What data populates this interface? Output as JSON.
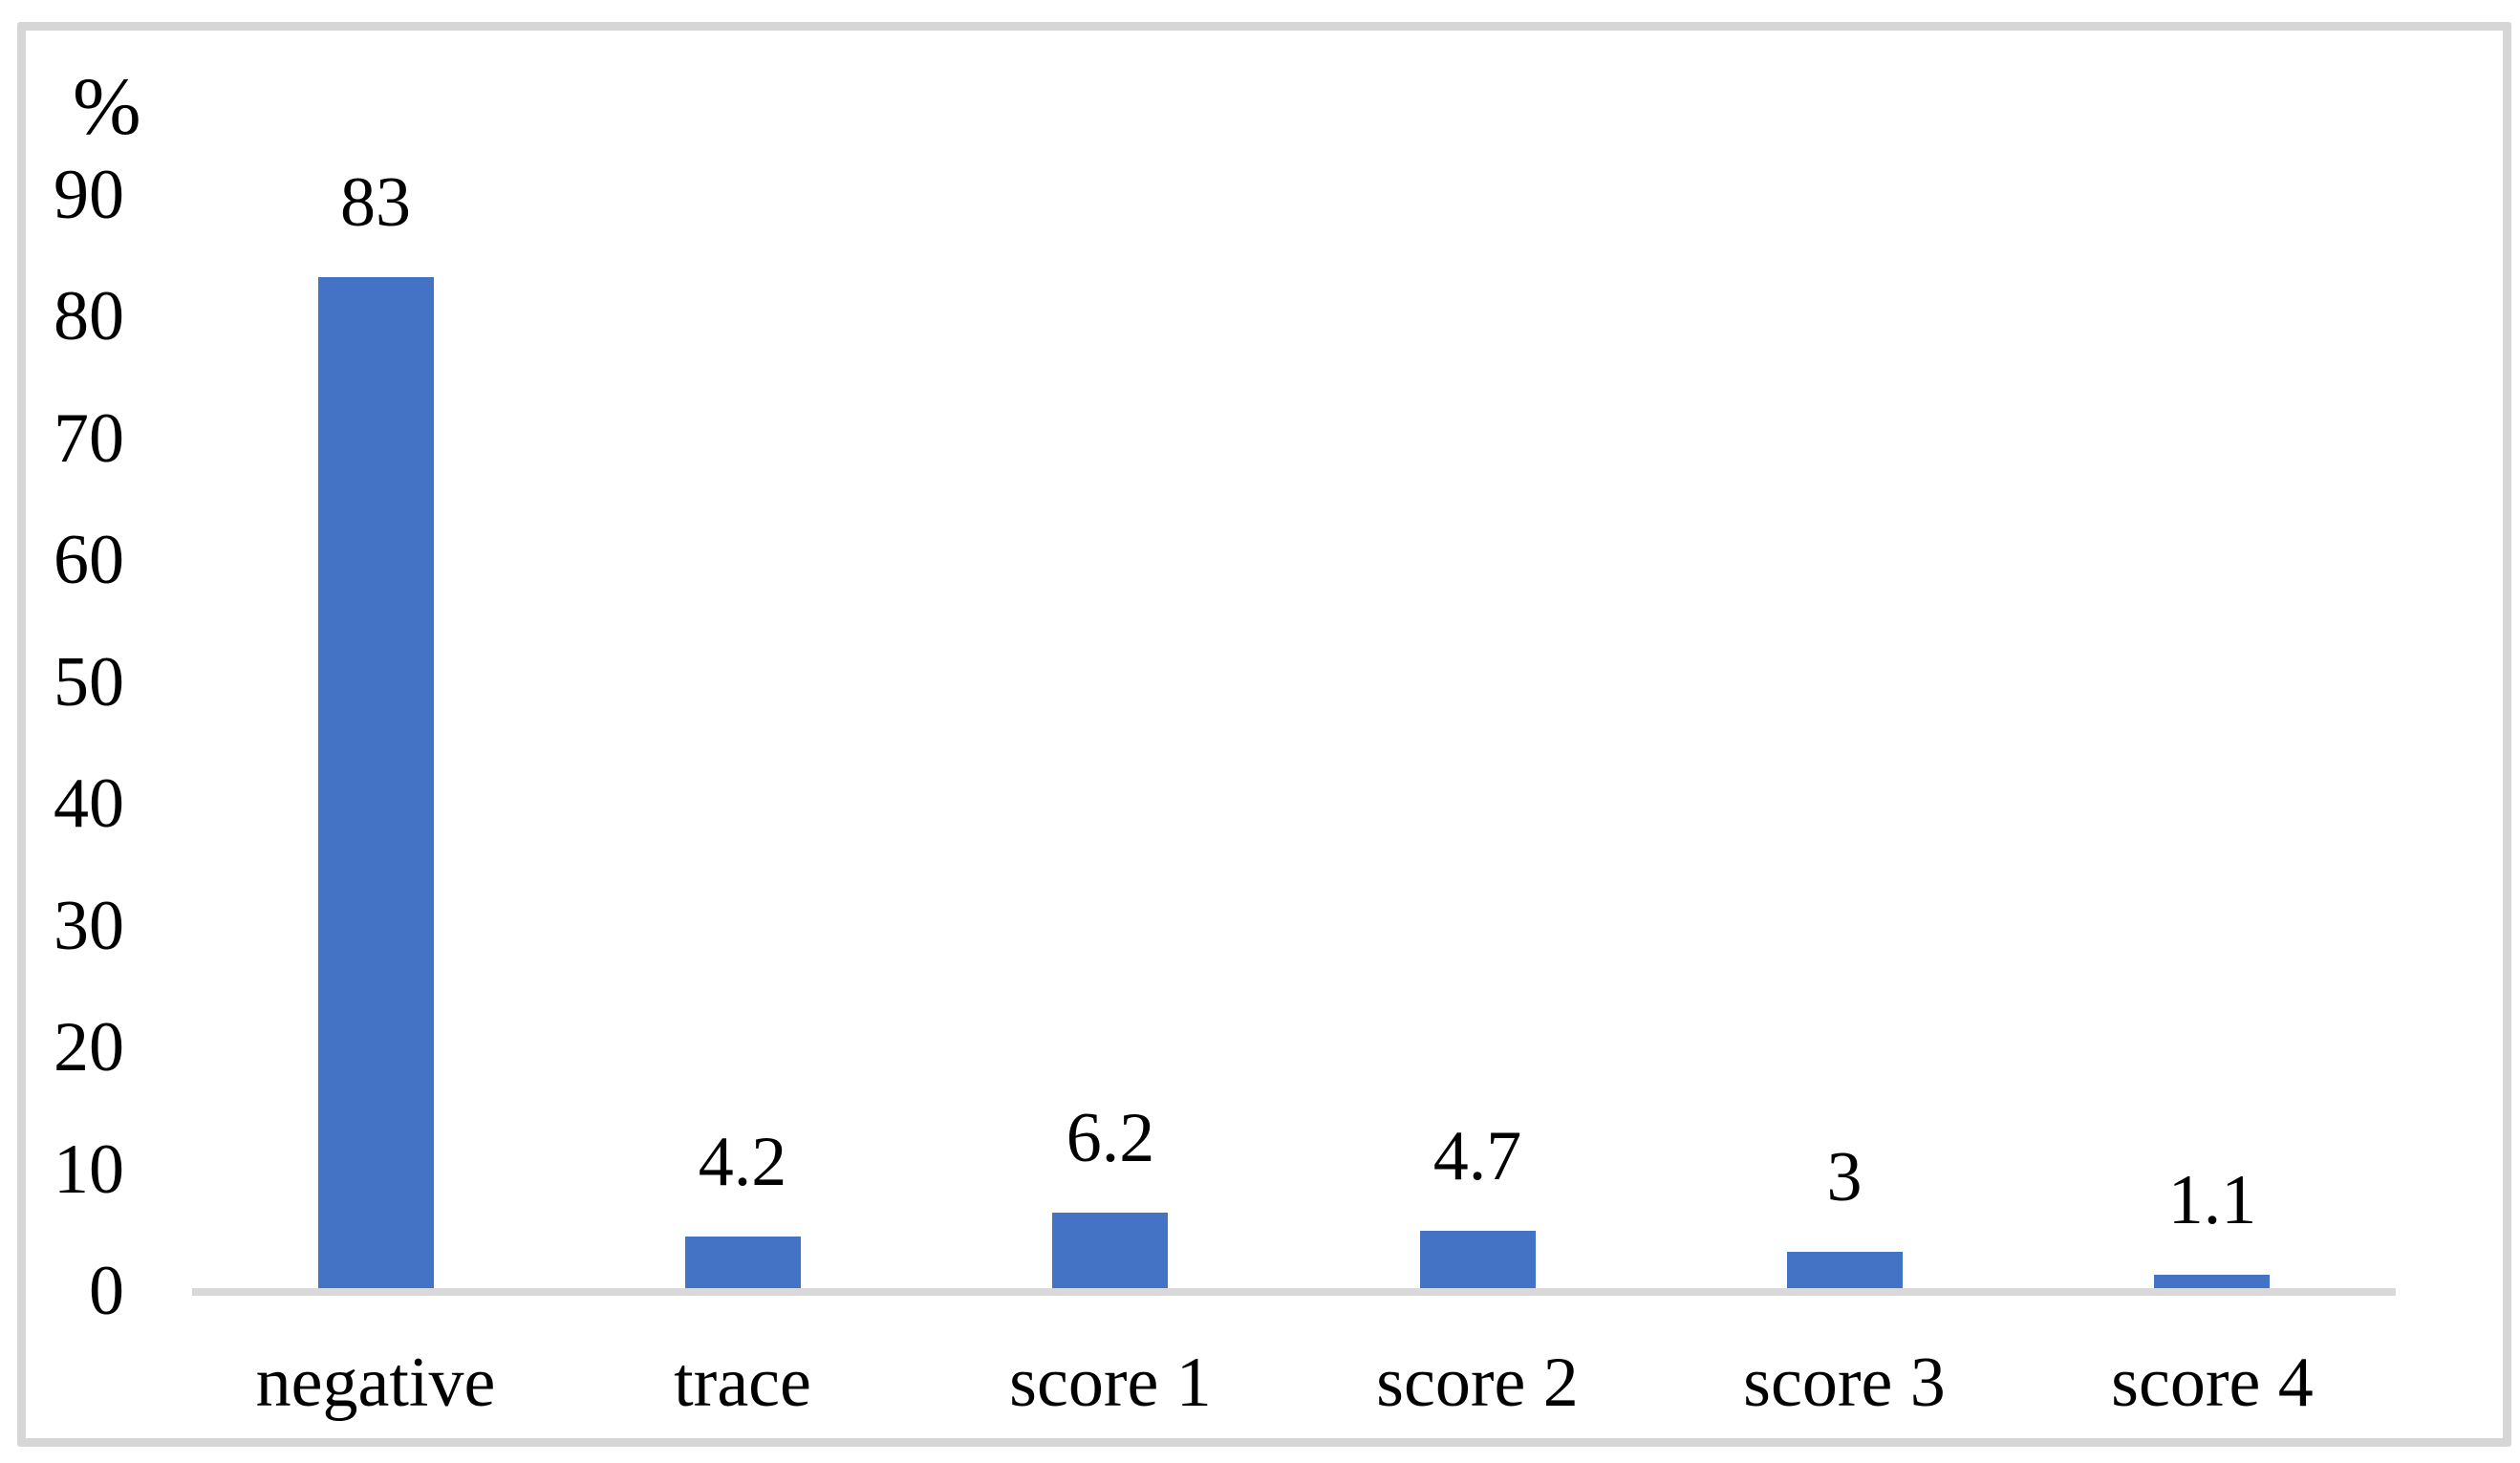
{
  "figure": {
    "background": "#ffffff",
    "border_color": "#d6d6d6"
  },
  "chart_data": {
    "type": "bar",
    "title": "",
    "xlabel": "",
    "ylabel": "%",
    "categories": [
      "negative",
      "trace",
      "score 1",
      "score 2",
      "score 3",
      "score 4"
    ],
    "values": [
      83,
      4.2,
      6.2,
      4.7,
      3,
      1.1
    ],
    "value_labels": [
      "83",
      "4.2",
      "6.2",
      "4.7",
      "3",
      "1.1"
    ],
    "y_ticks": [
      0,
      10,
      20,
      30,
      40,
      50,
      60,
      70,
      80,
      90
    ],
    "ylim": [
      0,
      90
    ],
    "grid": false,
    "legend_position": "none",
    "bar_color": "#4472c4",
    "axis_line_color": "#d9d9d9",
    "text_color": "#000000"
  }
}
